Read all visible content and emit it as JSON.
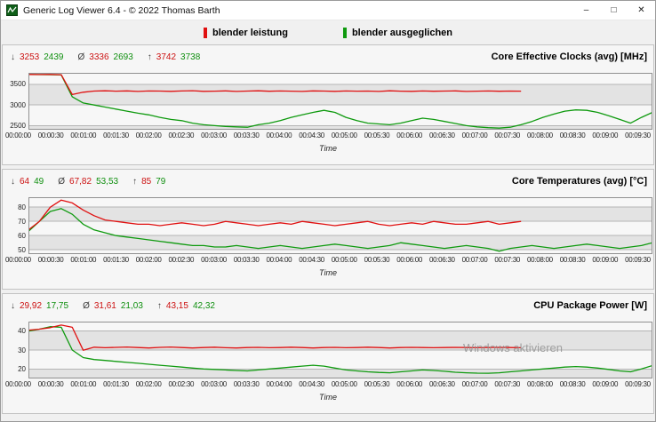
{
  "window": {
    "title": "Generic Log Viewer 6.4 - © 2022 Thomas Barth",
    "controls": {
      "minimize": "–",
      "maximize": "□",
      "close": "✕"
    }
  },
  "legend": {
    "items": [
      {
        "label": "blender leistung",
        "color": "#e01010"
      },
      {
        "label": "blender ausgeglichen",
        "color": "#0f9a0f"
      }
    ]
  },
  "stats_symbols": {
    "min": "↓",
    "avg": "Ø",
    "max": "↑"
  },
  "time_axis": {
    "label": "Time",
    "ticks": [
      "00:00:00",
      "00:00:30",
      "00:01:00",
      "00:01:30",
      "00:02:00",
      "00:02:30",
      "00:03:00",
      "00:03:30",
      "00:04:00",
      "00:04:30",
      "00:05:00",
      "00:05:30",
      "00:06:00",
      "00:06:30",
      "00:07:00",
      "00:07:30",
      "00:08:00",
      "00:08:30",
      "00:09:00",
      "00:09:30"
    ]
  },
  "panels": [
    {
      "title": "Core Effective Clocks (avg) [MHz]",
      "stats": {
        "min_red": "3253",
        "min_green": "2439",
        "avg_red": "3336",
        "avg_green": "2693",
        "max_red": "3742",
        "max_green": "3738"
      }
    },
    {
      "title": "Core Temperatures (avg) [°C]",
      "stats": {
        "min_red": "64",
        "min_green": "49",
        "avg_red": "67,82",
        "avg_green": "53,53",
        "max_red": "85",
        "max_green": "79"
      }
    },
    {
      "title": "CPU Package Power [W]",
      "stats": {
        "min_red": "29,92",
        "min_green": "17,75",
        "avg_red": "31,61",
        "avg_green": "21,03",
        "max_red": "43,15",
        "max_green": "42,32"
      }
    }
  ],
  "watermark": "Windows aktivieren",
  "plot_colors": {
    "band_light": "#f7f7f7",
    "band_dark": "#e3e3e3",
    "grid": "#b4b4b4",
    "border": "#909090"
  },
  "chart_data": [
    {
      "type": "line",
      "title": "Core Effective Clocks (avg) [MHz]",
      "xlabel": "Time",
      "ylabel": "MHz",
      "ylim": [
        2400,
        3780
      ],
      "yticks": [
        2500,
        3000,
        3500
      ],
      "xmax": 570,
      "legend_position": "top",
      "grid": true,
      "series": [
        {
          "name": "blender leistung",
          "color": "#e01010",
          "t_step": 10,
          "values": [
            3742,
            3740,
            3741,
            3735,
            3253,
            3310,
            3338,
            3345,
            3336,
            3342,
            3330,
            3341,
            3337,
            3332,
            3340,
            3346,
            3331,
            3336,
            3343,
            3330,
            3339,
            3345,
            3333,
            3340,
            3336,
            3329,
            3342,
            3337,
            3331,
            3340,
            3335,
            3338,
            3330,
            3345,
            3336,
            3331,
            3341,
            3333,
            3338,
            3342,
            3330,
            3336,
            3340,
            3334,
            3339,
            3336
          ]
        },
        {
          "name": "blender ausgeglichen",
          "color": "#0f9a0f",
          "t_step": 10,
          "values": [
            3738,
            3736,
            3735,
            3730,
            3200,
            3050,
            3000,
            2950,
            2900,
            2850,
            2800,
            2760,
            2700,
            2650,
            2620,
            2560,
            2520,
            2500,
            2480,
            2470,
            2460,
            2520,
            2560,
            2620,
            2700,
            2760,
            2820,
            2870,
            2820,
            2700,
            2620,
            2560,
            2540,
            2520,
            2560,
            2620,
            2680,
            2650,
            2600,
            2550,
            2500,
            2470,
            2450,
            2439,
            2460,
            2520,
            2600,
            2700,
            2780,
            2850,
            2880,
            2870,
            2820,
            2740,
            2650,
            2560,
            2700,
            2820
          ]
        }
      ]
    },
    {
      "type": "line",
      "title": "Core Temperatures (avg) [°C]",
      "xlabel": "Time",
      "ylabel": "°C",
      "ylim": [
        47,
        87
      ],
      "yticks": [
        50,
        60,
        70,
        80
      ],
      "xmax": 570,
      "legend_position": "top",
      "grid": true,
      "series": [
        {
          "name": "blender leistung",
          "color": "#e01010",
          "t_step": 10,
          "values": [
            64,
            70,
            80,
            85,
            83,
            78,
            74,
            71,
            70,
            69,
            68,
            68,
            67,
            68,
            69,
            68,
            67,
            68,
            70,
            69,
            68,
            67,
            68,
            69,
            68,
            70,
            69,
            68,
            67,
            68,
            69,
            70,
            68,
            67,
            68,
            69,
            68,
            70,
            69,
            68,
            68,
            69,
            70,
            68,
            69,
            70
          ]
        },
        {
          "name": "blender ausgeglichen",
          "color": "#0f9a0f",
          "t_step": 10,
          "values": [
            63,
            70,
            77,
            79,
            75,
            68,
            64,
            62,
            60,
            59,
            58,
            57,
            56,
            55,
            54,
            53,
            53,
            52,
            52,
            53,
            52,
            51,
            52,
            53,
            52,
            51,
            52,
            53,
            54,
            53,
            52,
            51,
            52,
            53,
            55,
            54,
            53,
            52,
            51,
            52,
            53,
            52,
            51,
            49,
            51,
            52,
            53,
            52,
            51,
            52,
            53,
            54,
            53,
            52,
            51,
            52,
            53,
            55
          ]
        }
      ]
    },
    {
      "type": "line",
      "title": "CPU Package Power [W]",
      "xlabel": "Time",
      "ylabel": "W",
      "ylim": [
        15,
        45
      ],
      "yticks": [
        20,
        30,
        40
      ],
      "xmax": 570,
      "legend_position": "top",
      "grid": true,
      "series": [
        {
          "name": "blender leistung",
          "color": "#e01010",
          "t_step": 10,
          "values": [
            40.5,
            41,
            41.8,
            43.15,
            42,
            29.92,
            31.5,
            31.2,
            31.4,
            31.6,
            31.3,
            31.1,
            31.4,
            31.6,
            31.3,
            31.1,
            31.3,
            31.5,
            31.2,
            31.1,
            31.3,
            31.4,
            31.2,
            31.3,
            31.5,
            31.3,
            31.1,
            31.3,
            31.4,
            31.2,
            31.3,
            31.5,
            31.3,
            31.1,
            31.3,
            31.4,
            31.3,
            31.2,
            31.3,
            31.4,
            31.3,
            31.2,
            31.3,
            31.4,
            31.3,
            31.2
          ]
        },
        {
          "name": "blender ausgeglichen",
          "color": "#0f9a0f",
          "t_step": 10,
          "values": [
            40,
            41,
            42.32,
            42,
            30,
            26,
            25,
            24.5,
            24,
            23.5,
            23,
            22.5,
            22,
            21.5,
            21,
            20.5,
            20,
            19.8,
            19.5,
            19.2,
            19,
            19.5,
            20,
            20.5,
            21,
            21.5,
            22,
            21.5,
            20.5,
            19.5,
            19,
            18.5,
            18.2,
            18,
            18.5,
            19,
            19.5,
            19.2,
            18.8,
            18.3,
            18,
            17.8,
            17.75,
            18,
            18.5,
            19,
            19.5,
            20,
            20.5,
            21,
            21.3,
            21,
            20.5,
            19.8,
            19,
            18.5,
            20,
            21.8
          ]
        }
      ]
    }
  ]
}
